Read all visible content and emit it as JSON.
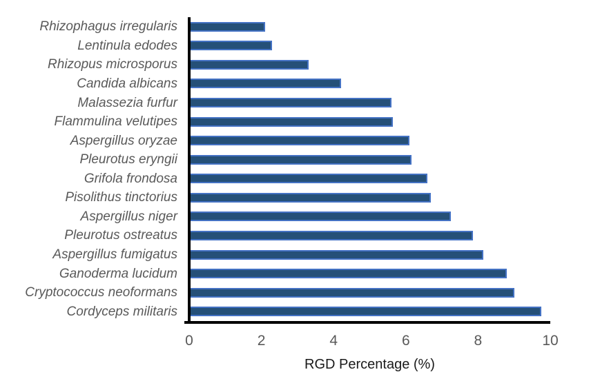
{
  "chart_data": {
    "type": "bar",
    "orientation": "horizontal",
    "title": "",
    "xlabel": "RGD Percentage (%)",
    "ylabel": "",
    "xlim": [
      0,
      10
    ],
    "x_ticks": [
      0,
      2,
      4,
      6,
      8,
      10
    ],
    "grid": false,
    "legend": false,
    "categories": [
      "Rhizophagus irregularis",
      "Lentinula edodes",
      "Rhizopus microsporus",
      "Candida albicans",
      "Malassezia furfur",
      "Flammulina velutipes",
      "Aspergillus oryzae",
      "Pleurotus eryngii",
      "Grifola frondosa",
      "Pisolithus tinctorius",
      "Aspergillus niger",
      "Pleurotus ostreatus",
      "Aspergillus fumigatus",
      "Ganoderma lucidum",
      "Cryptococcus neoformans",
      "Cordyceps militaris"
    ],
    "values": [
      2.1,
      2.3,
      3.3,
      4.2,
      5.6,
      5.65,
      6.1,
      6.15,
      6.6,
      6.7,
      7.25,
      7.85,
      8.15,
      8.8,
      9.0,
      9.75
    ],
    "colors": {
      "bar_fill": "#255078",
      "bar_border": "#4472c4",
      "axis_line": "#000000",
      "tick_and_category_label": "#595959",
      "axis_title": "#1a1a1a",
      "background": "#ffffff"
    }
  }
}
